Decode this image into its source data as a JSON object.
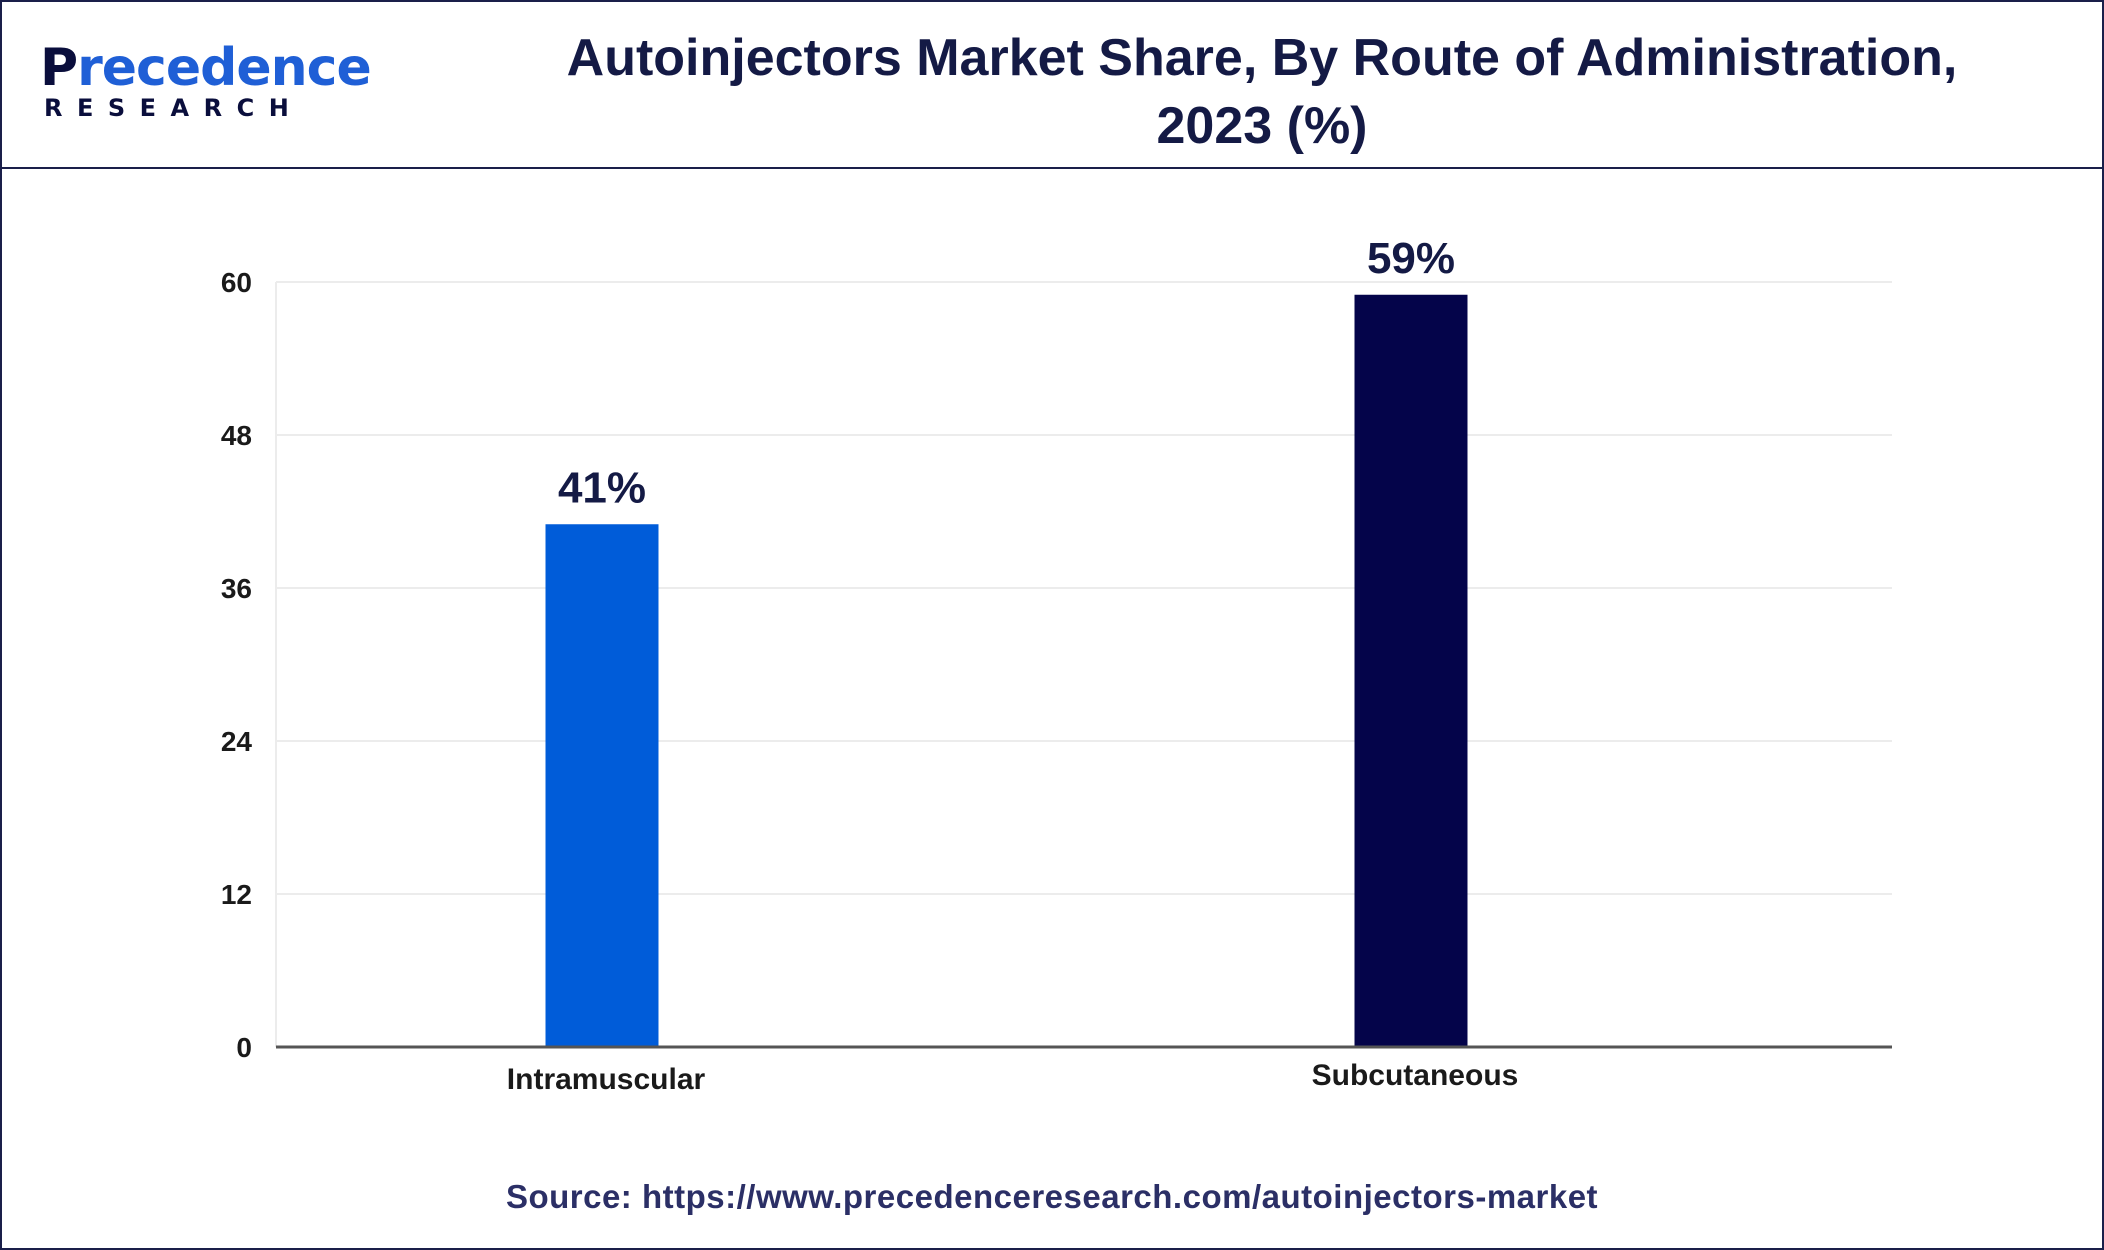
{
  "header": {
    "logo_main": "Precedence",
    "logo_sub": "RESEARCH",
    "title_line1": "Autoinjectors Market Share, By Route of Administration,",
    "title_line2": "2023 (%)"
  },
  "chart_data": {
    "type": "bar",
    "categories": [
      "Intramuscular",
      "Subcutaneous"
    ],
    "values": [
      41,
      59
    ],
    "data_labels": [
      "41%",
      "59%"
    ],
    "colors": [
      "#005cd9",
      "#04044a"
    ],
    "ylim": [
      0,
      60
    ],
    "yticks": [
      0,
      12,
      24,
      36,
      48,
      60
    ],
    "grid": true,
    "legend": "none"
  },
  "footer": {
    "source": "Source: https://www.precedenceresearch.com/autoinjectors-market"
  }
}
